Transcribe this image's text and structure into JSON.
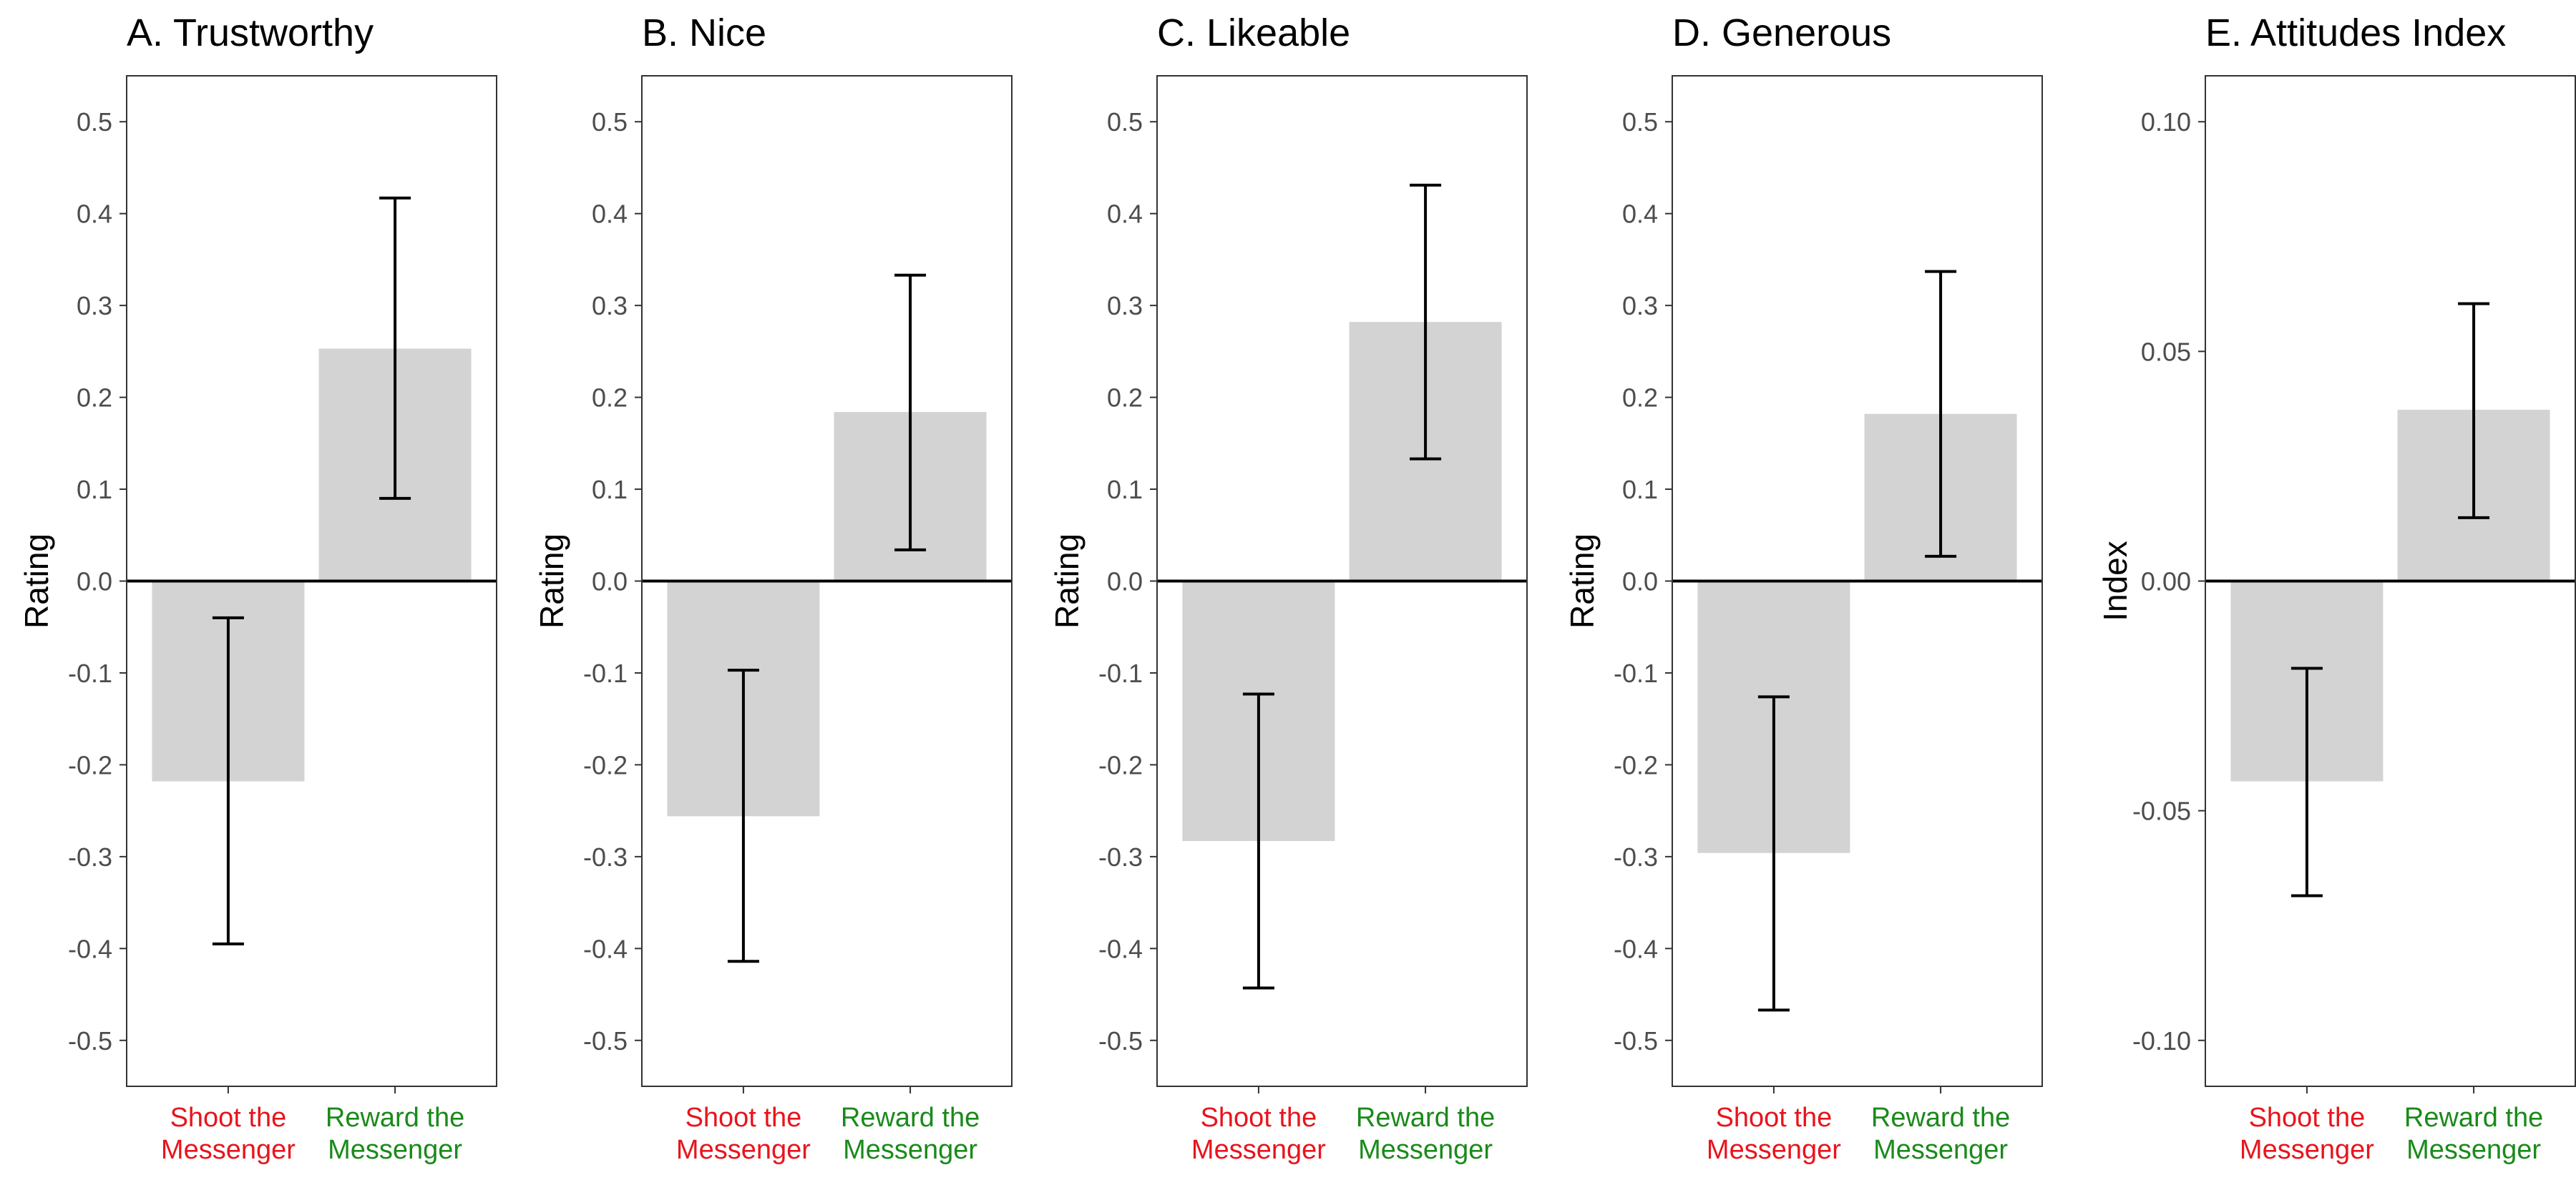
{
  "colors": {
    "bar": "#d3d3d3",
    "error_bar": "#000000",
    "zero_line": "#000000",
    "frame": "#333333",
    "shoot_label": "#e8141d",
    "reward_label": "#1a8a1a"
  },
  "categories": [
    {
      "line1": "Shoot the",
      "line2": "Messenger",
      "color_key": "shoot_label"
    },
    {
      "line1": "Reward the",
      "line2": "Messenger",
      "color_key": "reward_label"
    }
  ],
  "chart_data": [
    {
      "type": "bar",
      "title": "A. Trustworthy",
      "ylabel": "Rating",
      "ylim": [
        -0.55,
        0.55
      ],
      "yticks": [
        0.5,
        0.4,
        0.3,
        0.2,
        0.1,
        0.0,
        -0.1,
        -0.2,
        -0.3,
        -0.4,
        -0.5
      ],
      "ytick_labels": [
        "0.5",
        "0.4",
        "0.3",
        "0.2",
        "0.1",
        "0.0",
        "-0.1",
        "-0.2",
        "-0.3",
        "-0.4",
        "-0.5"
      ],
      "values": [
        -0.218,
        0.253
      ],
      "ci_low": [
        -0.395,
        0.09
      ],
      "ci_high": [
        -0.04,
        0.417
      ]
    },
    {
      "type": "bar",
      "title": "B. Nice",
      "ylabel": "Rating",
      "ylim": [
        -0.55,
        0.55
      ],
      "yticks": [
        0.5,
        0.4,
        0.3,
        0.2,
        0.1,
        0.0,
        -0.1,
        -0.2,
        -0.3,
        -0.4,
        -0.5
      ],
      "ytick_labels": [
        "0.5",
        "0.4",
        "0.3",
        "0.2",
        "0.1",
        "0.0",
        "-0.1",
        "-0.2",
        "-0.3",
        "-0.4",
        "-0.5"
      ],
      "values": [
        -0.256,
        0.184
      ],
      "ci_low": [
        -0.414,
        0.034
      ],
      "ci_high": [
        -0.097,
        0.333
      ]
    },
    {
      "type": "bar",
      "title": "C. Likeable",
      "ylabel": "Rating",
      "ylim": [
        -0.55,
        0.55
      ],
      "yticks": [
        0.5,
        0.4,
        0.3,
        0.2,
        0.1,
        0.0,
        -0.1,
        -0.2,
        -0.3,
        -0.4,
        -0.5
      ],
      "ytick_labels": [
        "0.5",
        "0.4",
        "0.3",
        "0.2",
        "0.1",
        "0.0",
        "-0.1",
        "-0.2",
        "-0.3",
        "-0.4",
        "-0.5"
      ],
      "values": [
        -0.283,
        0.282
      ],
      "ci_low": [
        -0.443,
        0.133
      ],
      "ci_high": [
        -0.123,
        0.431
      ]
    },
    {
      "type": "bar",
      "title": "D. Generous",
      "ylabel": "Rating",
      "ylim": [
        -0.55,
        0.55
      ],
      "yticks": [
        0.5,
        0.4,
        0.3,
        0.2,
        0.1,
        0.0,
        -0.1,
        -0.2,
        -0.3,
        -0.4,
        -0.5
      ],
      "ytick_labels": [
        "0.5",
        "0.4",
        "0.3",
        "0.2",
        "0.1",
        "0.0",
        "-0.1",
        "-0.2",
        "-0.3",
        "-0.4",
        "-0.5"
      ],
      "values": [
        -0.296,
        0.182
      ],
      "ci_low": [
        -0.467,
        0.027
      ],
      "ci_high": [
        -0.126,
        0.337
      ]
    },
    {
      "type": "bar",
      "title": "E. Attitudes Index",
      "ylabel": "Index",
      "ylim": [
        -0.11,
        0.11
      ],
      "yticks": [
        0.1,
        0.05,
        0.0,
        -0.05,
        -0.1
      ],
      "ytick_labels": [
        "0.10",
        "0.05",
        "0.00",
        "-0.05",
        "-0.10"
      ],
      "values": [
        -0.0436,
        0.0373
      ],
      "ci_low": [
        -0.0685,
        0.0138
      ],
      "ci_high": [
        -0.019,
        0.0604
      ]
    }
  ]
}
